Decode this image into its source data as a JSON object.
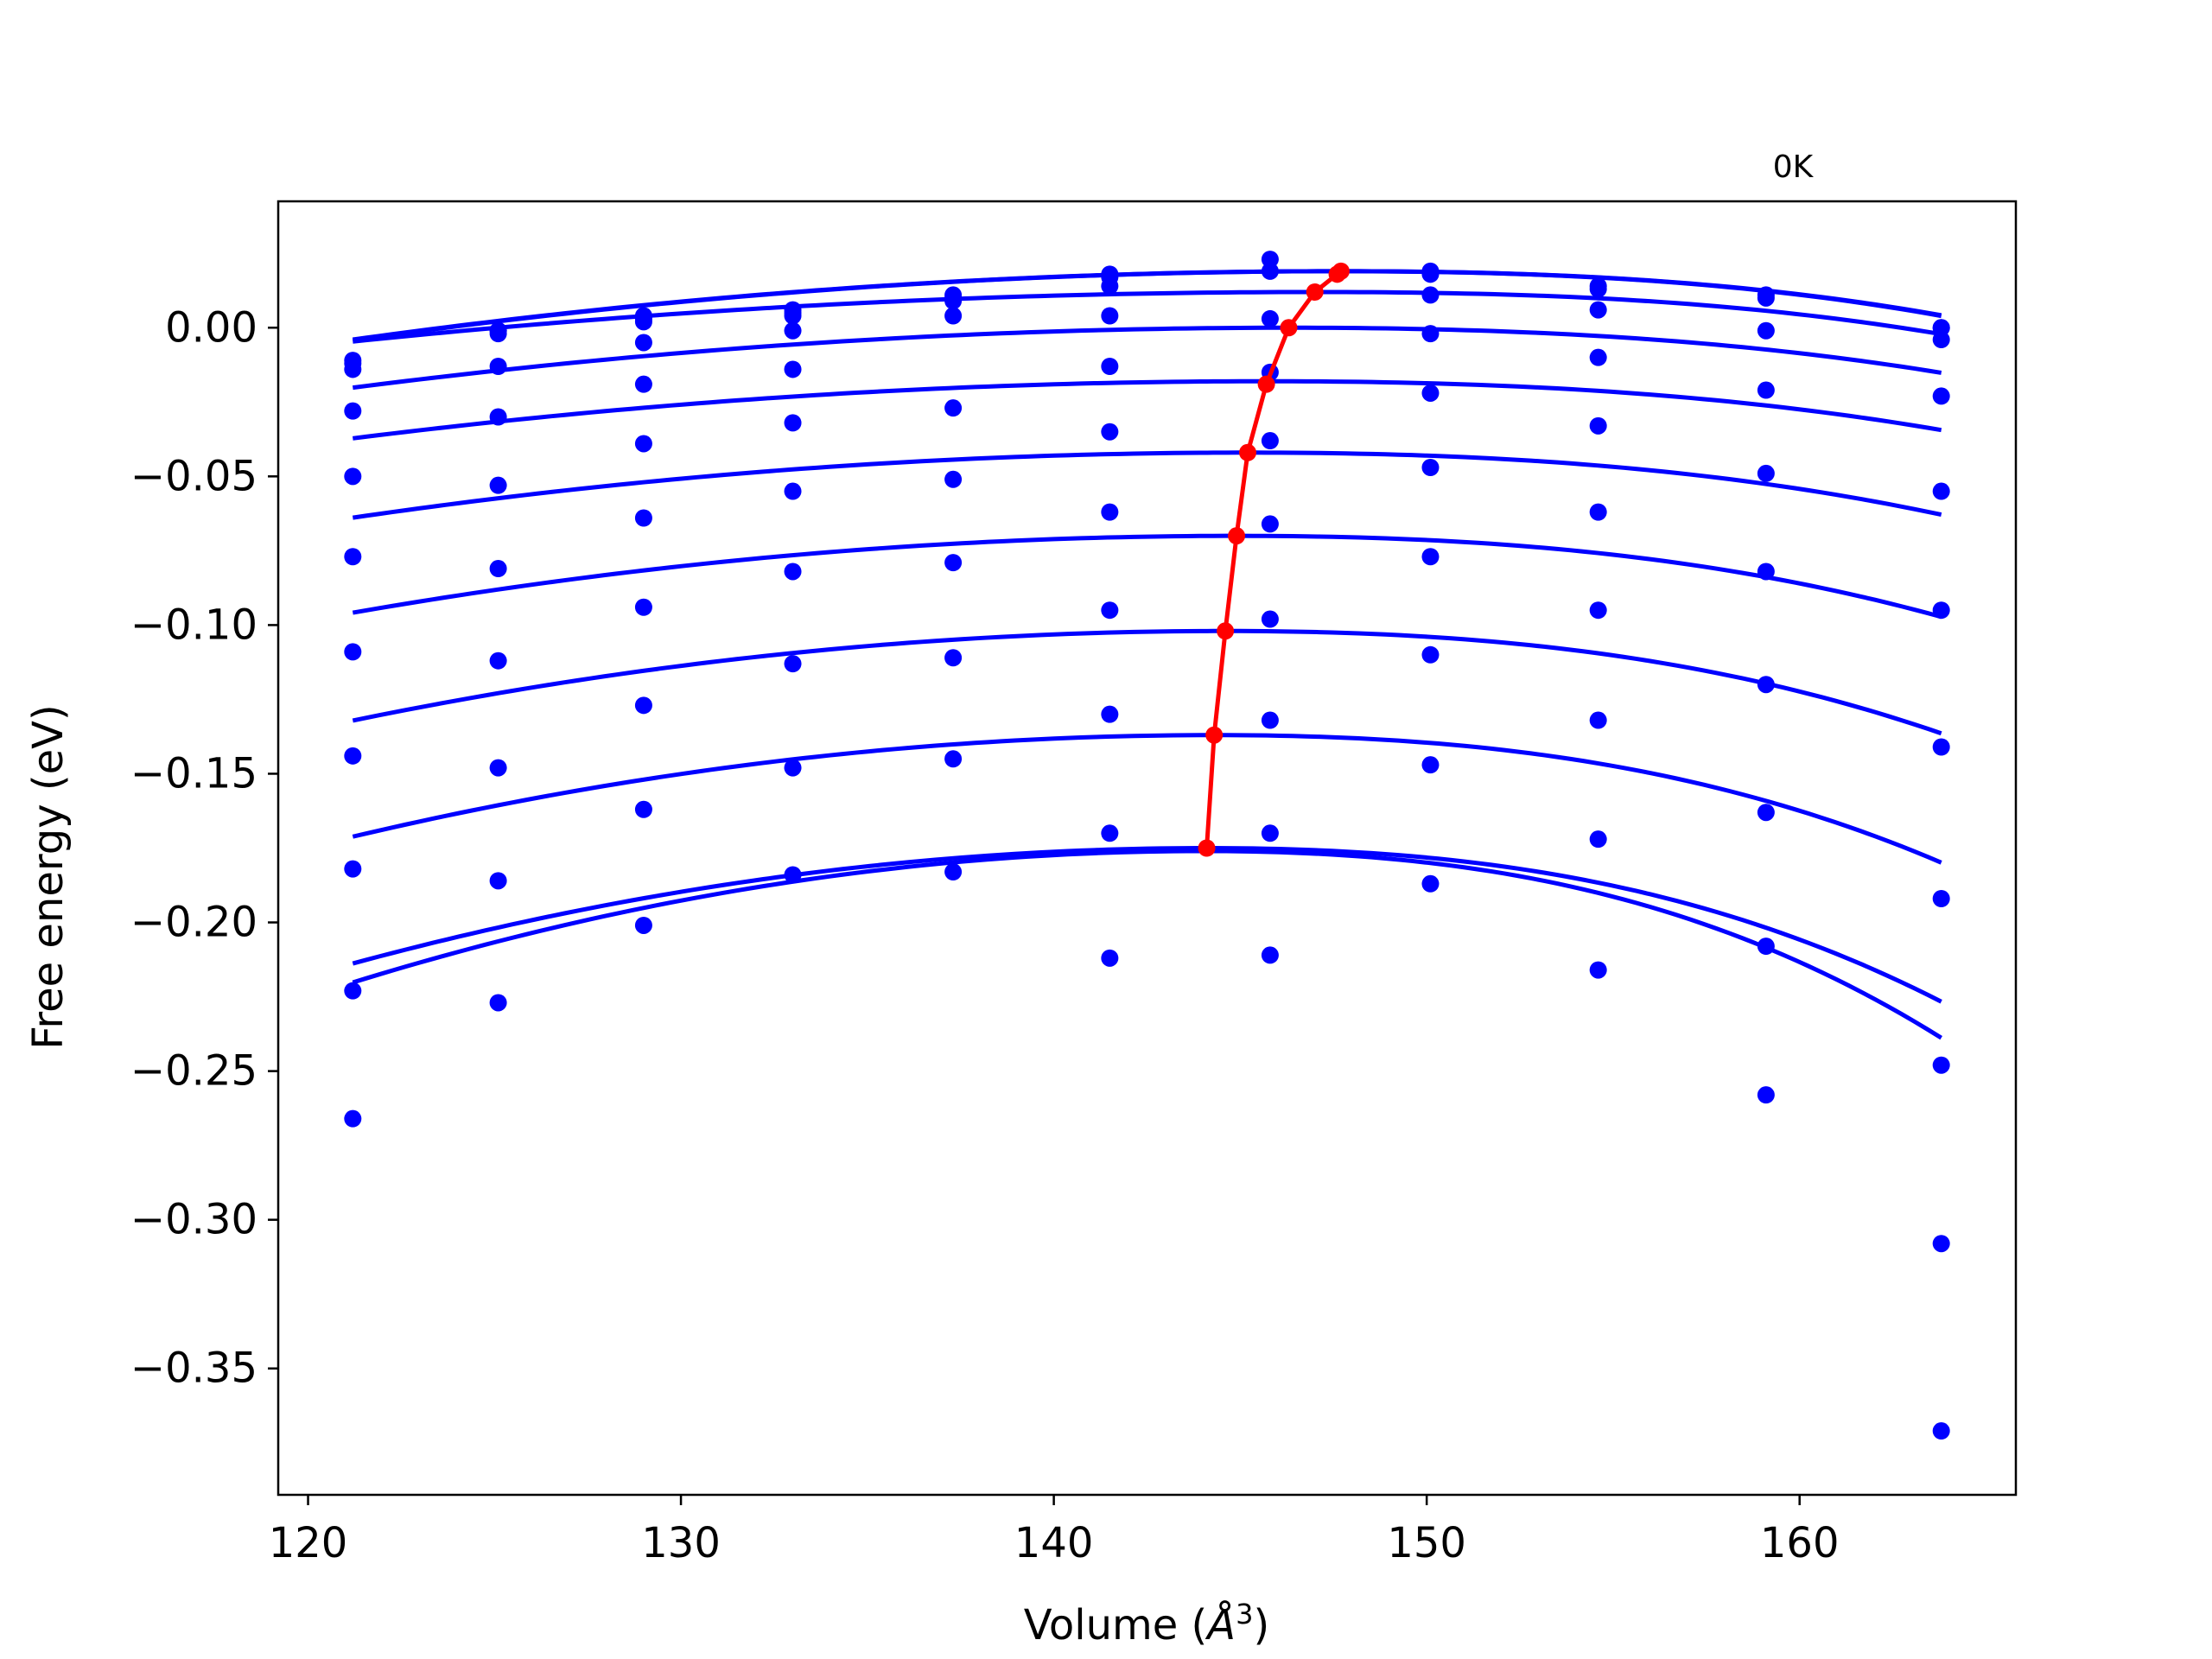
{
  "chart_data": {
    "type": "scatter",
    "title": "",
    "annotation": "0K",
    "xlabel": "Volume (",
    "xlabel_unit": "Å",
    "xlabel_exp": "3",
    "xlabel_close": ")",
    "ylabel": "Free energy (eV)",
    "xlim": [
      119.2,
      165.8
    ],
    "ylim": [
      -0.3925,
      0.0425
    ],
    "xticks": [
      120,
      130,
      140,
      150,
      160
    ],
    "xtick_labels": [
      "120",
      "130",
      "140",
      "150",
      "160"
    ],
    "yticks": [
      0.0,
      -0.05,
      -0.1,
      -0.15,
      -0.2,
      -0.25,
      -0.3,
      -0.35
    ],
    "ytick_labels": [
      "0.00",
      "−0.05",
      "−0.10",
      "−0.15",
      "−0.20",
      "−0.25",
      "−0.30",
      "−0.35"
    ],
    "x": [
      121.2,
      125.1,
      129.0,
      133.0,
      137.3,
      141.5,
      145.8,
      150.1,
      154.6,
      159.1,
      163.8
    ],
    "grid": false,
    "colors": {
      "points": "#0000ff",
      "curves": "#0000ff",
      "minima": "#ff0000"
    },
    "series": [
      {
        "points": [
          -0.011,
          -0.001,
          0.004,
          0.006,
          0.011,
          0.018,
          0.023,
          0.019,
          0.014,
          0.011,
          0.0
        ],
        "fit": {
          "vmin": 147.7,
          "emin": 0.019,
          "a": 3.3e-05,
          "b": 1.5e-06
        }
      },
      {
        "points": [
          -0.012,
          -0.001,
          0.003,
          0.005,
          0.01,
          0.017,
          0.019,
          0.018,
          0.013,
          0.01,
          0.0
        ],
        "fit": {
          "vmin": 147.6,
          "emin": 0.019,
          "a": 3.3e-05,
          "b": 1.5e-06
        }
      },
      {
        "points": [
          -0.014,
          -0.002,
          0.002,
          0.004,
          0.009,
          0.014,
          0.003,
          0.011,
          0.006,
          -0.001,
          -0.004
        ],
        "fit": {
          "vmin": 147.0,
          "emin": 0.012,
          "a": 2.5e-05,
          "b": 1.5e-06
        }
      },
      {
        "points": [
          -0.028,
          -0.013,
          -0.005,
          -0.001,
          0.004,
          0.004,
          -0.015,
          -0.002,
          -0.01,
          -0.021,
          -0.023
        ],
        "fit": {
          "vmin": 146.3,
          "emin": 0.0,
          "a": 3.2e-05,
          "b": 1e-06
        }
      },
      {
        "points": [
          -0.05,
          -0.03,
          -0.019,
          -0.014,
          -0.027,
          -0.013,
          -0.038,
          -0.022,
          -0.033,
          -0.049,
          -0.055
        ],
        "fit": {
          "vmin": 145.7,
          "emin": -0.018,
          "a": 3.2e-05,
          "b": 1e-06
        }
      },
      {
        "points": [
          -0.077,
          -0.053,
          -0.039,
          -0.032,
          -0.051,
          -0.035,
          -0.066,
          -0.047,
          -0.062,
          -0.082,
          -0.095
        ],
        "fit": {
          "vmin": 145.2,
          "emin": -0.042,
          "a": 3.8e-05,
          "b": 1.2e-06
        }
      },
      {
        "points": [
          -0.109,
          -0.081,
          -0.064,
          -0.055,
          -0.079,
          -0.062,
          -0.098,
          -0.077,
          -0.095,
          -0.12,
          -0.141
        ],
        "fit": {
          "vmin": 144.9,
          "emin": -0.07,
          "a": 4.6e-05,
          "b": 1.6e-06
        }
      },
      {
        "points": [
          -0.144,
          -0.112,
          -0.094,
          -0.082,
          -0.111,
          -0.095,
          -0.132,
          -0.11,
          -0.132,
          -0.163,
          -0.192
        ],
        "fit": {
          "vmin": 144.6,
          "emin": -0.102,
          "a": 5.5e-05,
          "b": 2e-06
        }
      },
      {
        "points": [
          -0.182,
          -0.148,
          -0.127,
          -0.113,
          -0.145,
          -0.13,
          -0.17,
          -0.147,
          -0.172,
          -0.208,
          -0.248
        ],
        "fit": {
          "vmin": 144.3,
          "emin": -0.137,
          "a": 6.4e-05,
          "b": 2.5e-06
        }
      },
      {
        "points": [
          -0.223,
          -0.186,
          -0.162,
          -0.148,
          -0.183,
          -0.17,
          -0.211,
          -0.187,
          -0.216,
          -0.258,
          -0.308
        ],
        "fit": {
          "vmin": 144.1,
          "emin": -0.175,
          "a": 7.4e-05,
          "b": 3e-06
        }
      },
      {
        "points": [
          -0.266,
          -0.227,
          -0.201,
          -0.184,
          null,
          -0.212,
          null,
          null,
          null,
          null,
          -0.371
        ],
        "fit": {
          "vmin": 144.0,
          "emin": -0.176,
          "a": 8.5e-05,
          "b": 3.8e-06
        }
      }
    ],
    "minima_curve": {
      "x": [
        147.7,
        147.6,
        147.0,
        146.3,
        145.7,
        145.2,
        144.9,
        144.6,
        144.3,
        144.1
      ],
      "y": [
        0.019,
        0.018,
        0.012,
        0.0,
        -0.019,
        -0.042,
        -0.07,
        -0.102,
        -0.137,
        -0.175
      ]
    }
  }
}
